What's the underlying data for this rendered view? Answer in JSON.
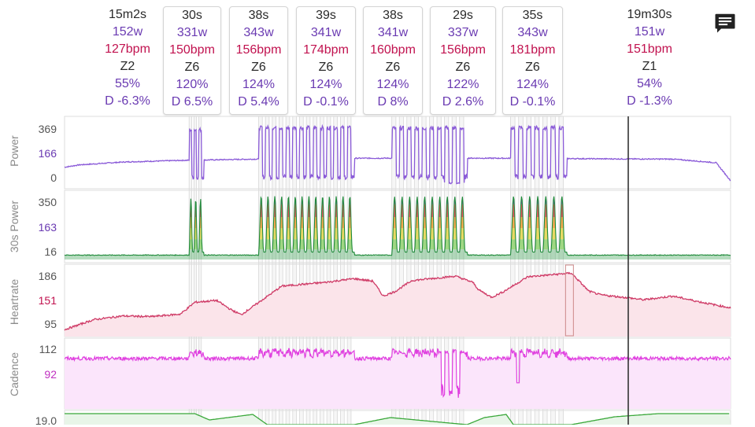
{
  "intervals": [
    {
      "duration": "15m2s",
      "power": "152w",
      "hr": "127bpm",
      "zone": "Z2",
      "pct": "55%",
      "drift": "D -6.3%",
      "boxed": false
    },
    {
      "duration": "30s",
      "power": "331w",
      "hr": "150bpm",
      "zone": "Z6",
      "pct": "120%",
      "drift": "D 6.5%",
      "boxed": true
    },
    {
      "duration": "38s",
      "power": "343w",
      "hr": "156bpm",
      "zone": "Z6",
      "pct": "124%",
      "drift": "D 5.4%",
      "boxed": true
    },
    {
      "duration": "39s",
      "power": "341w",
      "hr": "174bpm",
      "zone": "Z6",
      "pct": "124%",
      "drift": "D -0.1%",
      "boxed": true
    },
    {
      "duration": "38s",
      "power": "341w",
      "hr": "160bpm",
      "zone": "Z6",
      "pct": "124%",
      "drift": "D 8%",
      "boxed": true
    },
    {
      "duration": "29s",
      "power": "337w",
      "hr": "156bpm",
      "zone": "Z6",
      "pct": "122%",
      "drift": "D 2.6%",
      "boxed": true
    },
    {
      "duration": "35s",
      "power": "343w",
      "hr": "181bpm",
      "zone": "Z6",
      "pct": "124%",
      "drift": "D -0.1%",
      "boxed": true
    },
    {
      "duration": "19m30s",
      "power": "151w",
      "hr": "151bpm",
      "zone": "Z1",
      "pct": "54%",
      "drift": "D -1.3%",
      "boxed": false
    }
  ],
  "comment_icon": "comment-icon",
  "colors": {
    "power": "#8a5ad8",
    "power_tick": "#6a3ab2",
    "hr_line": "#cf3a66",
    "hr_fill": "#fbe4ea",
    "hr_tick": "#c1124f",
    "cadence_line": "#e040e0",
    "cadence_fill": "#fbe5fb",
    "cadence_tick": "#c030c0",
    "speed_line": "#3aa83a",
    "speed_fill": "#e8f5e8"
  },
  "chart_data": [
    {
      "type": "line",
      "ylabel": "Power",
      "y_ticks": [
        "369",
        "166",
        "0"
      ],
      "ylim": [
        0,
        369
      ],
      "x_unit": "minutes",
      "xlim": [
        0,
        46
      ],
      "baseline_levels": [
        [
          0,
          101
        ],
        [
          1,
          115
        ],
        [
          4,
          132
        ],
        [
          8,
          142
        ],
        [
          12,
          148
        ],
        [
          15,
          152
        ],
        [
          20,
          155
        ],
        [
          27,
          156
        ],
        [
          33,
          154
        ],
        [
          38,
          151
        ],
        [
          42,
          150
        ],
        [
          45,
          128
        ],
        [
          46,
          20
        ]
      ],
      "efforts": [
        {
          "start": 8.6,
          "end": 9.6,
          "n": 3,
          "peak": 331
        },
        {
          "start": 13.4,
          "end": 20.0,
          "n": 14,
          "peak": 343
        },
        {
          "start": 22.6,
          "end": 27.8,
          "n": 10,
          "peak": 341
        },
        {
          "start": 30.8,
          "end": 34.7,
          "n": 7,
          "peak": 343
        }
      ],
      "grid": false
    },
    {
      "type": "area",
      "ylabel": "30s Power",
      "y_ticks": [
        "350",
        "163",
        "16"
      ],
      "ylim": [
        0,
        350
      ],
      "zone_colors": [
        "#2e9b47",
        "#8fd16f",
        "#e5d44a",
        "#f39a33",
        "#e63946",
        "#6a3ab2"
      ],
      "baseline": 16
    },
    {
      "type": "line",
      "ylabel": "Heartrate",
      "y_ticks": [
        "186",
        "151",
        "95"
      ],
      "ylim": [
        95,
        186
      ],
      "points": [
        [
          0,
          96
        ],
        [
          2,
          112
        ],
        [
          4,
          118
        ],
        [
          6,
          117
        ],
        [
          8,
          121
        ],
        [
          9,
          140
        ],
        [
          10.5,
          143
        ],
        [
          11.5,
          128
        ],
        [
          12.2,
          120
        ],
        [
          13,
          133
        ],
        [
          15,
          166
        ],
        [
          18,
          172
        ],
        [
          20,
          178
        ],
        [
          21.3,
          174
        ],
        [
          22,
          150
        ],
        [
          22.8,
          157
        ],
        [
          24,
          175
        ],
        [
          27,
          182
        ],
        [
          28.2,
          172
        ],
        [
          28.6,
          160
        ],
        [
          29.5,
          148
        ],
        [
          30.3,
          157
        ],
        [
          32,
          181
        ],
        [
          34,
          185
        ],
        [
          35,
          187
        ],
        [
          36.2,
          158
        ],
        [
          37,
          152
        ],
        [
          39,
          147
        ],
        [
          40,
          144
        ],
        [
          42,
          150
        ],
        [
          44,
          140
        ],
        [
          46,
          131
        ]
      ]
    },
    {
      "type": "line",
      "ylabel": "Cadence",
      "y_ticks": [
        "112",
        "92"
      ],
      "ylim": [
        70,
        115
      ],
      "base": 103,
      "effort_level": 108
    },
    {
      "type": "line",
      "ylabel": "",
      "y_ticks": [
        "19.0"
      ]
    }
  ]
}
